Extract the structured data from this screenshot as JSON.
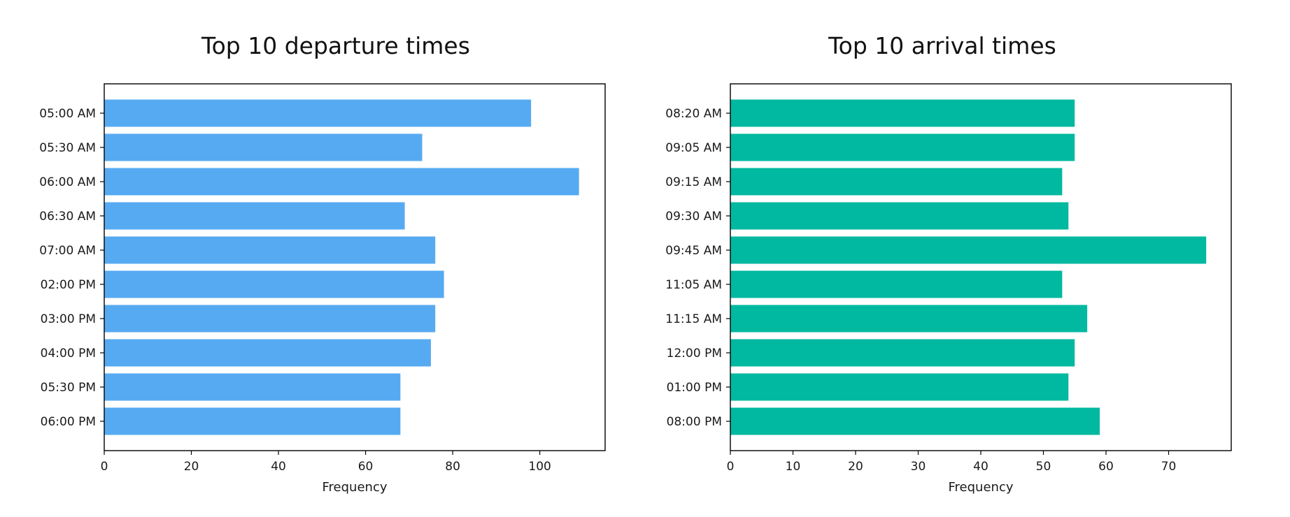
{
  "chart_data": [
    {
      "type": "bar",
      "orientation": "horizontal",
      "title": "Top 10 departure times",
      "xlabel": "Frequency",
      "ylabel": "",
      "xlim": [
        0,
        115
      ],
      "xticks": [
        0,
        20,
        40,
        60,
        80,
        100
      ],
      "grid": false,
      "color": "#56aaf2",
      "categories": [
        "05:00 AM",
        "05:30 AM",
        "06:00 AM",
        "06:30 AM",
        "07:00 AM",
        "02:00 PM",
        "03:00 PM",
        "04:00 PM",
        "05:30 PM",
        "06:00 PM"
      ],
      "values": [
        98,
        73,
        109,
        69,
        76,
        78,
        76,
        75,
        68,
        68
      ]
    },
    {
      "type": "bar",
      "orientation": "horizontal",
      "title": "Top 10 arrival times",
      "xlabel": "Frequency",
      "ylabel": "",
      "xlim": [
        0,
        80
      ],
      "xticks": [
        0,
        10,
        20,
        30,
        40,
        50,
        60,
        70
      ],
      "grid": false,
      "color": "#00b9a0",
      "categories": [
        "08:20 AM",
        "09:05 AM",
        "09:15 AM",
        "09:30 AM",
        "09:45 AM",
        "11:05 AM",
        "11:15 AM",
        "12:00 PM",
        "01:00 PM",
        "08:00 PM"
      ],
      "values": [
        55,
        55,
        53,
        54,
        76,
        53,
        57,
        55,
        54,
        59
      ]
    }
  ]
}
